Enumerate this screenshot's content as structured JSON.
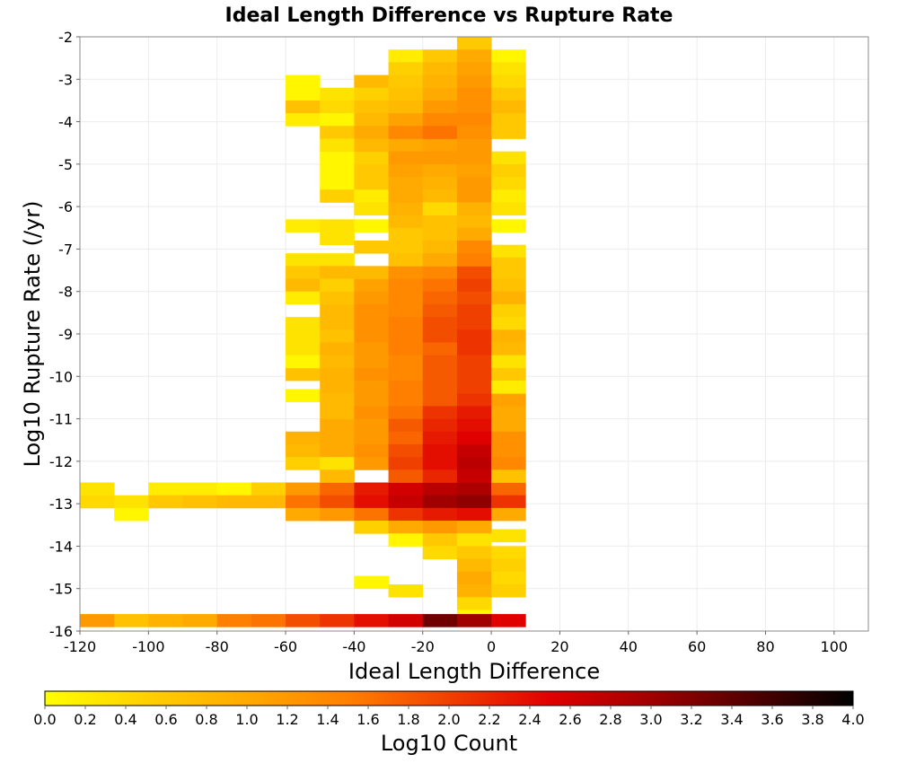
{
  "chart_data": {
    "type": "heatmap",
    "title": "Ideal Length Difference vs Rupture Rate",
    "xlabel": "Ideal Length Difference",
    "ylabel": "Log10 Rupture Rate (/yr)",
    "colorbar_label": "Log10 Count",
    "xlim": [
      -120,
      110
    ],
    "ylim": [
      -16,
      -2
    ],
    "x_ticks": [
      -120,
      -100,
      -80,
      -60,
      -40,
      -20,
      0,
      20,
      40,
      60,
      80,
      100
    ],
    "y_ticks": [
      -2,
      -3,
      -4,
      -5,
      -6,
      -7,
      -8,
      -9,
      -10,
      -11,
      -12,
      -13,
      -14,
      -15,
      -16
    ],
    "colorbar_range": [
      0.0,
      4.0
    ],
    "colorbar_ticks": [
      0.0,
      0.2,
      0.4,
      0.6,
      0.8,
      1.0,
      1.2,
      1.4,
      1.6,
      1.8,
      2.0,
      2.2,
      2.4,
      2.6,
      2.8,
      3.0,
      3.2,
      3.4,
      3.6,
      3.8,
      4.0
    ],
    "colormap": [
      "#ffff00",
      "#ffd000",
      "#ffaa00",
      "#ff8000",
      "#f04000",
      "#e00000",
      "#a00000",
      "#500000",
      "#000000"
    ],
    "grid": true,
    "bin_width_x": 10,
    "bin_height_y": 0.3,
    "cells": [
      [
        -120,
        -12.8,
        0.3
      ],
      [
        -120,
        -13.1,
        0.4
      ],
      [
        -110,
        -13.1,
        0.3
      ],
      [
        -110,
        -13.4,
        0.1
      ],
      [
        -100,
        -12.8,
        0.2
      ],
      [
        -100,
        -13.1,
        0.6
      ],
      [
        -90,
        -12.8,
        0.2
      ],
      [
        -90,
        -13.1,
        0.7
      ],
      [
        -80,
        -12.8,
        0.1
      ],
      [
        -80,
        -13.1,
        0.8
      ],
      [
        -70,
        -12.8,
        0.5
      ],
      [
        -70,
        -13.1,
        0.8
      ],
      [
        -60,
        -12.8,
        1.2
      ],
      [
        -60,
        -13.1,
        1.6
      ],
      [
        -60,
        -13.4,
        1.0
      ],
      [
        -60,
        -11.6,
        0.9
      ],
      [
        -60,
        -11.9,
        0.8
      ],
      [
        -60,
        -12.2,
        0.5
      ],
      [
        -60,
        -10.1,
        0.7
      ],
      [
        -60,
        -10.6,
        0.1
      ],
      [
        -60,
        -8.9,
        0.3
      ],
      [
        -60,
        -9.2,
        0.3
      ],
      [
        -60,
        -9.5,
        0.3
      ],
      [
        -60,
        -9.8,
        0.1
      ],
      [
        -60,
        -7.4,
        0.3
      ],
      [
        -60,
        -7.7,
        0.6
      ],
      [
        -60,
        -8.0,
        0.8
      ],
      [
        -60,
        -8.3,
        0.2
      ],
      [
        -60,
        -6.6,
        0.2
      ],
      [
        -60,
        -3.2,
        0.1
      ],
      [
        -60,
        -3.5,
        0.1
      ],
      [
        -60,
        -3.8,
        0.7
      ],
      [
        -60,
        -4.1,
        0.2
      ],
      [
        -50,
        -12.8,
        1.7
      ],
      [
        -50,
        -13.1,
        1.9
      ],
      [
        -50,
        -13.4,
        1.2
      ],
      [
        -50,
        -11.3,
        1.0
      ],
      [
        -50,
        -11.6,
        1.0
      ],
      [
        -50,
        -11.9,
        1.0
      ],
      [
        -50,
        -12.2,
        0.3
      ],
      [
        -50,
        -12.5,
        0.8
      ],
      [
        -50,
        -8.6,
        0.8
      ],
      [
        -50,
        -8.9,
        0.8
      ],
      [
        -50,
        -9.2,
        0.7
      ],
      [
        -50,
        -9.5,
        0.9
      ],
      [
        -50,
        -9.8,
        0.8
      ],
      [
        -50,
        -10.1,
        0.9
      ],
      [
        -50,
        -10.4,
        0.9
      ],
      [
        -50,
        -10.7,
        0.8
      ],
      [
        -50,
        -11.0,
        0.8
      ],
      [
        -50,
        -7.4,
        0.3
      ],
      [
        -50,
        -7.7,
        0.8
      ],
      [
        -50,
        -8.0,
        0.5
      ],
      [
        -50,
        -8.3,
        0.7
      ],
      [
        -50,
        -6.6,
        0.3
      ],
      [
        -50,
        -6.9,
        0.3
      ],
      [
        -50,
        -5.0,
        0.1
      ],
      [
        -50,
        -5.3,
        0.1
      ],
      [
        -50,
        -5.6,
        0.1
      ],
      [
        -50,
        -5.9,
        0.5
      ],
      [
        -50,
        -3.5,
        0.3
      ],
      [
        -50,
        -3.8,
        0.4
      ],
      [
        -50,
        -4.1,
        0.1
      ],
      [
        -50,
        -4.4,
        0.6
      ],
      [
        -50,
        -4.7,
        0.3
      ],
      [
        -40,
        -12.8,
        2.3
      ],
      [
        -40,
        -13.1,
        2.4
      ],
      [
        -40,
        -13.4,
        1.6
      ],
      [
        -40,
        -13.7,
        0.5
      ],
      [
        -40,
        -15.0,
        0.1
      ],
      [
        -40,
        -11.0,
        1.3
      ],
      [
        -40,
        -11.3,
        1.2
      ],
      [
        -40,
        -11.6,
        1.2
      ],
      [
        -40,
        -11.9,
        1.3
      ],
      [
        -40,
        -12.2,
        1.2
      ],
      [
        -40,
        -8.0,
        1.1
      ],
      [
        -40,
        -8.3,
        1.2
      ],
      [
        -40,
        -8.6,
        1.3
      ],
      [
        -40,
        -8.9,
        1.3
      ],
      [
        -40,
        -9.2,
        1.3
      ],
      [
        -40,
        -9.5,
        1.2
      ],
      [
        -40,
        -9.8,
        1.2
      ],
      [
        -40,
        -10.1,
        1.3
      ],
      [
        -40,
        -10.4,
        1.2
      ],
      [
        -40,
        -10.7,
        1.2
      ],
      [
        -40,
        -7.1,
        0.6
      ],
      [
        -40,
        -7.7,
        0.8
      ],
      [
        -40,
        -6.6,
        0.1
      ],
      [
        -40,
        -5.0,
        0.5
      ],
      [
        -40,
        -5.3,
        0.6
      ],
      [
        -40,
        -5.6,
        0.6
      ],
      [
        -40,
        -5.9,
        0.2
      ],
      [
        -40,
        -6.2,
        0.3
      ],
      [
        -40,
        -3.2,
        0.8
      ],
      [
        -40,
        -3.5,
        0.5
      ],
      [
        -40,
        -3.8,
        0.7
      ],
      [
        -40,
        -4.1,
        0.8
      ],
      [
        -40,
        -4.4,
        1.0
      ],
      [
        -40,
        -4.7,
        0.8
      ],
      [
        -30,
        -12.8,
        2.6
      ],
      [
        -30,
        -13.1,
        2.7
      ],
      [
        -30,
        -13.4,
        2.1
      ],
      [
        -30,
        -13.7,
        1.0
      ],
      [
        -30,
        -14.0,
        0.1
      ],
      [
        -30,
        -15.2,
        0.3
      ],
      [
        -30,
        -10.7,
        1.5
      ],
      [
        -30,
        -11.0,
        1.6
      ],
      [
        -30,
        -11.3,
        1.8
      ],
      [
        -30,
        -11.6,
        1.7
      ],
      [
        -30,
        -11.9,
        1.9
      ],
      [
        -30,
        -12.2,
        2.0
      ],
      [
        -30,
        -12.5,
        1.8
      ],
      [
        -30,
        -7.7,
        1.3
      ],
      [
        -30,
        -8.0,
        1.4
      ],
      [
        -30,
        -8.3,
        1.4
      ],
      [
        -30,
        -8.6,
        1.4
      ],
      [
        -30,
        -8.9,
        1.5
      ],
      [
        -30,
        -9.2,
        1.5
      ],
      [
        -30,
        -9.5,
        1.5
      ],
      [
        -30,
        -9.8,
        1.4
      ],
      [
        -30,
        -10.1,
        1.4
      ],
      [
        -30,
        -10.4,
        1.5
      ],
      [
        -30,
        -6.5,
        0.8
      ],
      [
        -30,
        -6.8,
        0.6
      ],
      [
        -30,
        -7.1,
        0.6
      ],
      [
        -30,
        -7.4,
        0.7
      ],
      [
        -30,
        -4.7,
        1.0
      ],
      [
        -30,
        -5.0,
        1.2
      ],
      [
        -30,
        -5.3,
        1.1
      ],
      [
        -30,
        -5.6,
        1.0
      ],
      [
        -30,
        -5.9,
        1.0
      ],
      [
        -30,
        -6.2,
        0.9
      ],
      [
        -30,
        -2.6,
        0.2
      ],
      [
        -30,
        -2.9,
        0.5
      ],
      [
        -30,
        -3.2,
        0.6
      ],
      [
        -30,
        -3.5,
        0.7
      ],
      [
        -30,
        -3.8,
        0.8
      ],
      [
        -30,
        -4.1,
        1.1
      ],
      [
        -30,
        -4.4,
        1.4
      ],
      [
        -20,
        -12.8,
        2.8
      ],
      [
        -20,
        -13.1,
        3.0
      ],
      [
        -20,
        -13.4,
        2.3
      ],
      [
        -20,
        -13.7,
        1.2
      ],
      [
        -20,
        -14.0,
        0.6
      ],
      [
        -20,
        -14.3,
        0.4
      ],
      [
        -20,
        -10.7,
        1.8
      ],
      [
        -20,
        -11.0,
        2.1
      ],
      [
        -20,
        -11.3,
        2.2
      ],
      [
        -20,
        -11.6,
        2.3
      ],
      [
        -20,
        -11.9,
        2.4
      ],
      [
        -20,
        -12.2,
        2.4
      ],
      [
        -20,
        -12.5,
        2.2
      ],
      [
        -20,
        -7.7,
        1.4
      ],
      [
        -20,
        -8.0,
        1.6
      ],
      [
        -20,
        -8.3,
        1.7
      ],
      [
        -20,
        -8.6,
        1.8
      ],
      [
        -20,
        -8.9,
        1.9
      ],
      [
        -20,
        -9.2,
        1.9
      ],
      [
        -20,
        -9.5,
        1.7
      ],
      [
        -20,
        -9.8,
        1.8
      ],
      [
        -20,
        -10.1,
        1.8
      ],
      [
        -20,
        -10.4,
        1.8
      ],
      [
        -20,
        -6.5,
        0.7
      ],
      [
        -20,
        -6.8,
        0.7
      ],
      [
        -20,
        -7.1,
        0.8
      ],
      [
        -20,
        -7.4,
        1.0
      ],
      [
        -20,
        -4.7,
        1.1
      ],
      [
        -20,
        -5.0,
        1.2
      ],
      [
        -20,
        -5.3,
        1.0
      ],
      [
        -20,
        -5.6,
        0.9
      ],
      [
        -20,
        -5.9,
        0.8
      ],
      [
        -20,
        -6.2,
        0.4
      ],
      [
        -20,
        -2.6,
        0.6
      ],
      [
        -20,
        -2.9,
        0.8
      ],
      [
        -20,
        -3.2,
        0.9
      ],
      [
        -20,
        -3.5,
        1.0
      ],
      [
        -20,
        -3.8,
        1.2
      ],
      [
        -20,
        -4.1,
        1.4
      ],
      [
        -20,
        -4.4,
        1.6
      ],
      [
        -10,
        -12.8,
        2.9
      ],
      [
        -10,
        -13.1,
        3.1
      ],
      [
        -10,
        -13.4,
        2.4
      ],
      [
        -10,
        -13.7,
        1.0
      ],
      [
        -10,
        -14.0,
        0.3
      ],
      [
        -10,
        -14.3,
        0.6
      ],
      [
        -10,
        -14.6,
        0.8
      ],
      [
        -10,
        -14.9,
        1.0
      ],
      [
        -10,
        -15.2,
        0.9
      ],
      [
        -10,
        -15.5,
        0.4
      ],
      [
        -10,
        -15.8,
        0.1
      ],
      [
        -10,
        -10.7,
        2.1
      ],
      [
        -10,
        -11.0,
        2.3
      ],
      [
        -10,
        -11.3,
        2.4
      ],
      [
        -10,
        -11.6,
        2.5
      ],
      [
        -10,
        -11.9,
        2.7
      ],
      [
        -10,
        -12.2,
        2.8
      ],
      [
        -10,
        -12.5,
        2.7
      ],
      [
        -10,
        -7.7,
        1.9
      ],
      [
        -10,
        -8.0,
        2.0
      ],
      [
        -10,
        -8.3,
        1.9
      ],
      [
        -10,
        -8.6,
        2.0
      ],
      [
        -10,
        -8.9,
        2.0
      ],
      [
        -10,
        -9.2,
        2.1
      ],
      [
        -10,
        -9.5,
        2.1
      ],
      [
        -10,
        -9.8,
        2.0
      ],
      [
        -10,
        -10.1,
        2.0
      ],
      [
        -10,
        -10.4,
        2.0
      ],
      [
        -10,
        -6.5,
        0.8
      ],
      [
        -10,
        -6.8,
        1.0
      ],
      [
        -10,
        -7.1,
        1.4
      ],
      [
        -10,
        -7.4,
        1.5
      ],
      [
        -10,
        -4.7,
        1.2
      ],
      [
        -10,
        -5.0,
        1.2
      ],
      [
        -10,
        -5.3,
        1.1
      ],
      [
        -10,
        -5.6,
        1.2
      ],
      [
        -10,
        -5.9,
        1.2
      ],
      [
        -10,
        -6.2,
        0.9
      ],
      [
        -10,
        -2.3,
        0.6
      ],
      [
        -10,
        -2.6,
        1.0
      ],
      [
        -10,
        -2.9,
        1.1
      ],
      [
        -10,
        -3.2,
        1.2
      ],
      [
        -10,
        -3.5,
        1.3
      ],
      [
        -10,
        -3.8,
        1.3
      ],
      [
        -10,
        -4.1,
        1.4
      ],
      [
        -10,
        -4.4,
        1.3
      ],
      [
        0,
        -12.8,
        1.7
      ],
      [
        0,
        -13.1,
        2.1
      ],
      [
        0,
        -13.4,
        1.0
      ],
      [
        0,
        -13.9,
        0.3
      ],
      [
        0,
        -14.3,
        0.4
      ],
      [
        0,
        -14.6,
        0.5
      ],
      [
        0,
        -14.9,
        0.4
      ],
      [
        0,
        -15.2,
        0.5
      ],
      [
        0,
        -10.7,
        1.1
      ],
      [
        0,
        -11.0,
        1.0
      ],
      [
        0,
        -11.3,
        1.0
      ],
      [
        0,
        -11.6,
        1.3
      ],
      [
        0,
        -11.9,
        1.3
      ],
      [
        0,
        -12.2,
        1.4
      ],
      [
        0,
        -12.5,
        0.7
      ],
      [
        0,
        -7.7,
        0.6
      ],
      [
        0,
        -8.0,
        0.7
      ],
      [
        0,
        -8.3,
        0.9
      ],
      [
        0,
        -8.6,
        0.5
      ],
      [
        0,
        -8.9,
        0.4
      ],
      [
        0,
        -9.2,
        0.9
      ],
      [
        0,
        -9.5,
        0.8
      ],
      [
        0,
        -9.8,
        0.3
      ],
      [
        0,
        -10.1,
        0.6
      ],
      [
        0,
        -10.4,
        0.2
      ],
      [
        0,
        -6.6,
        0.1
      ],
      [
        0,
        -7.2,
        0.3
      ],
      [
        0,
        -7.5,
        0.6
      ],
      [
        0,
        -5.0,
        0.3
      ],
      [
        0,
        -5.3,
        0.5
      ],
      [
        0,
        -5.6,
        0.4
      ],
      [
        0,
        -5.9,
        0.2
      ],
      [
        0,
        -6.2,
        0.3
      ],
      [
        0,
        -2.6,
        0.1
      ],
      [
        0,
        -2.9,
        0.3
      ],
      [
        0,
        -3.2,
        0.4
      ],
      [
        0,
        -3.5,
        0.6
      ],
      [
        0,
        -3.8,
        0.8
      ],
      [
        0,
        -4.1,
        0.6
      ],
      [
        0,
        -4.4,
        0.6
      ],
      [
        -120,
        -15.9,
        1.2
      ],
      [
        -110,
        -15.9,
        0.7
      ],
      [
        -100,
        -15.9,
        0.9
      ],
      [
        -90,
        -15.9,
        1.0
      ],
      [
        -80,
        -15.9,
        1.5
      ],
      [
        -70,
        -15.9,
        1.6
      ],
      [
        -60,
        -15.9,
        1.9
      ],
      [
        -50,
        -15.9,
        2.1
      ],
      [
        -40,
        -15.9,
        2.4
      ],
      [
        -30,
        -15.9,
        2.6
      ],
      [
        -20,
        -15.9,
        3.3
      ],
      [
        -10,
        -15.9,
        3.0
      ],
      [
        0,
        -15.9,
        2.5
      ]
    ]
  }
}
